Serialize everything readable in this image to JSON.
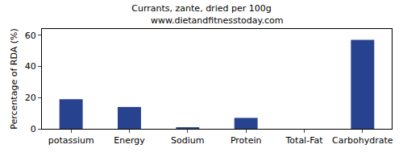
{
  "chart_data": {
    "type": "bar",
    "title": "Currants, zante, dried per 100g",
    "subtitle": "www.dietandfitnesstoday.com",
    "y_label": "Percentage of RDA (%)",
    "categories": [
      "potassium",
      "Energy",
      "Sodium",
      "Protein",
      "Total-Fat",
      "Carbohydrate"
    ],
    "values": [
      19,
      14,
      1,
      7,
      0,
      57
    ],
    "color": "#27428e",
    "ylim": [
      0,
      64
    ],
    "yticks": [
      0,
      20,
      40,
      60
    ],
    "grid": false
  }
}
